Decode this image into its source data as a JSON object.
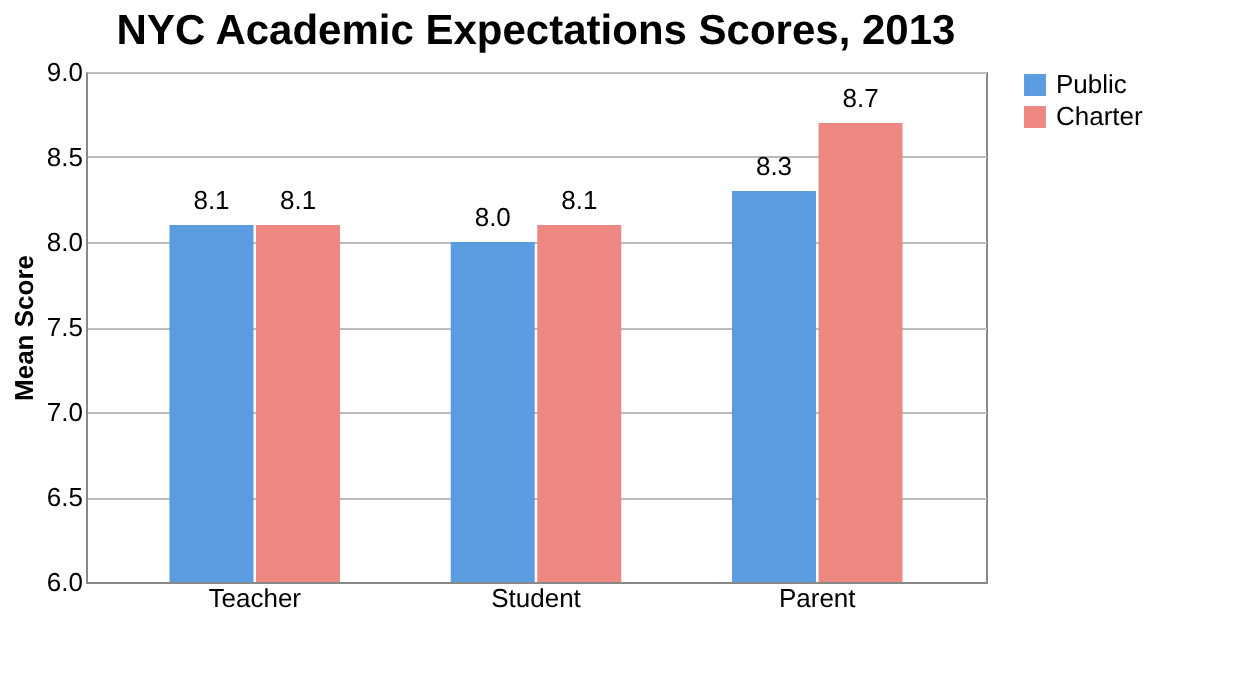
{
  "chart_data": {
    "type": "bar",
    "title": "NYC Academic Expectations Scores, 2013",
    "ylabel": "Mean Score",
    "categories": [
      "Teacher",
      "Student",
      "Parent"
    ],
    "series": [
      {
        "name": "Public",
        "color": "#5b9be0",
        "values": [
          8.1,
          8.0,
          8.3
        ],
        "value_labels": [
          "8.1",
          "8.0",
          "8.3"
        ]
      },
      {
        "name": "Charter",
        "color": "#ee8883",
        "values": [
          8.1,
          8.1,
          8.7
        ],
        "value_labels": [
          "8.1",
          "8.1",
          "8.7"
        ]
      }
    ],
    "ylim": [
      6,
      9
    ],
    "yticks": [
      {
        "value": 6,
        "label": "6.0"
      },
      {
        "value": 6.5,
        "label": "6.5"
      },
      {
        "value": 7,
        "label": "7.0"
      },
      {
        "value": 7.5,
        "label": "7.5"
      },
      {
        "value": 8,
        "label": "8.0"
      },
      {
        "value": 8.5,
        "label": "8.5"
      },
      {
        "value": 9,
        "label": "9.0"
      }
    ],
    "grid": "y",
    "legend": "right"
  }
}
